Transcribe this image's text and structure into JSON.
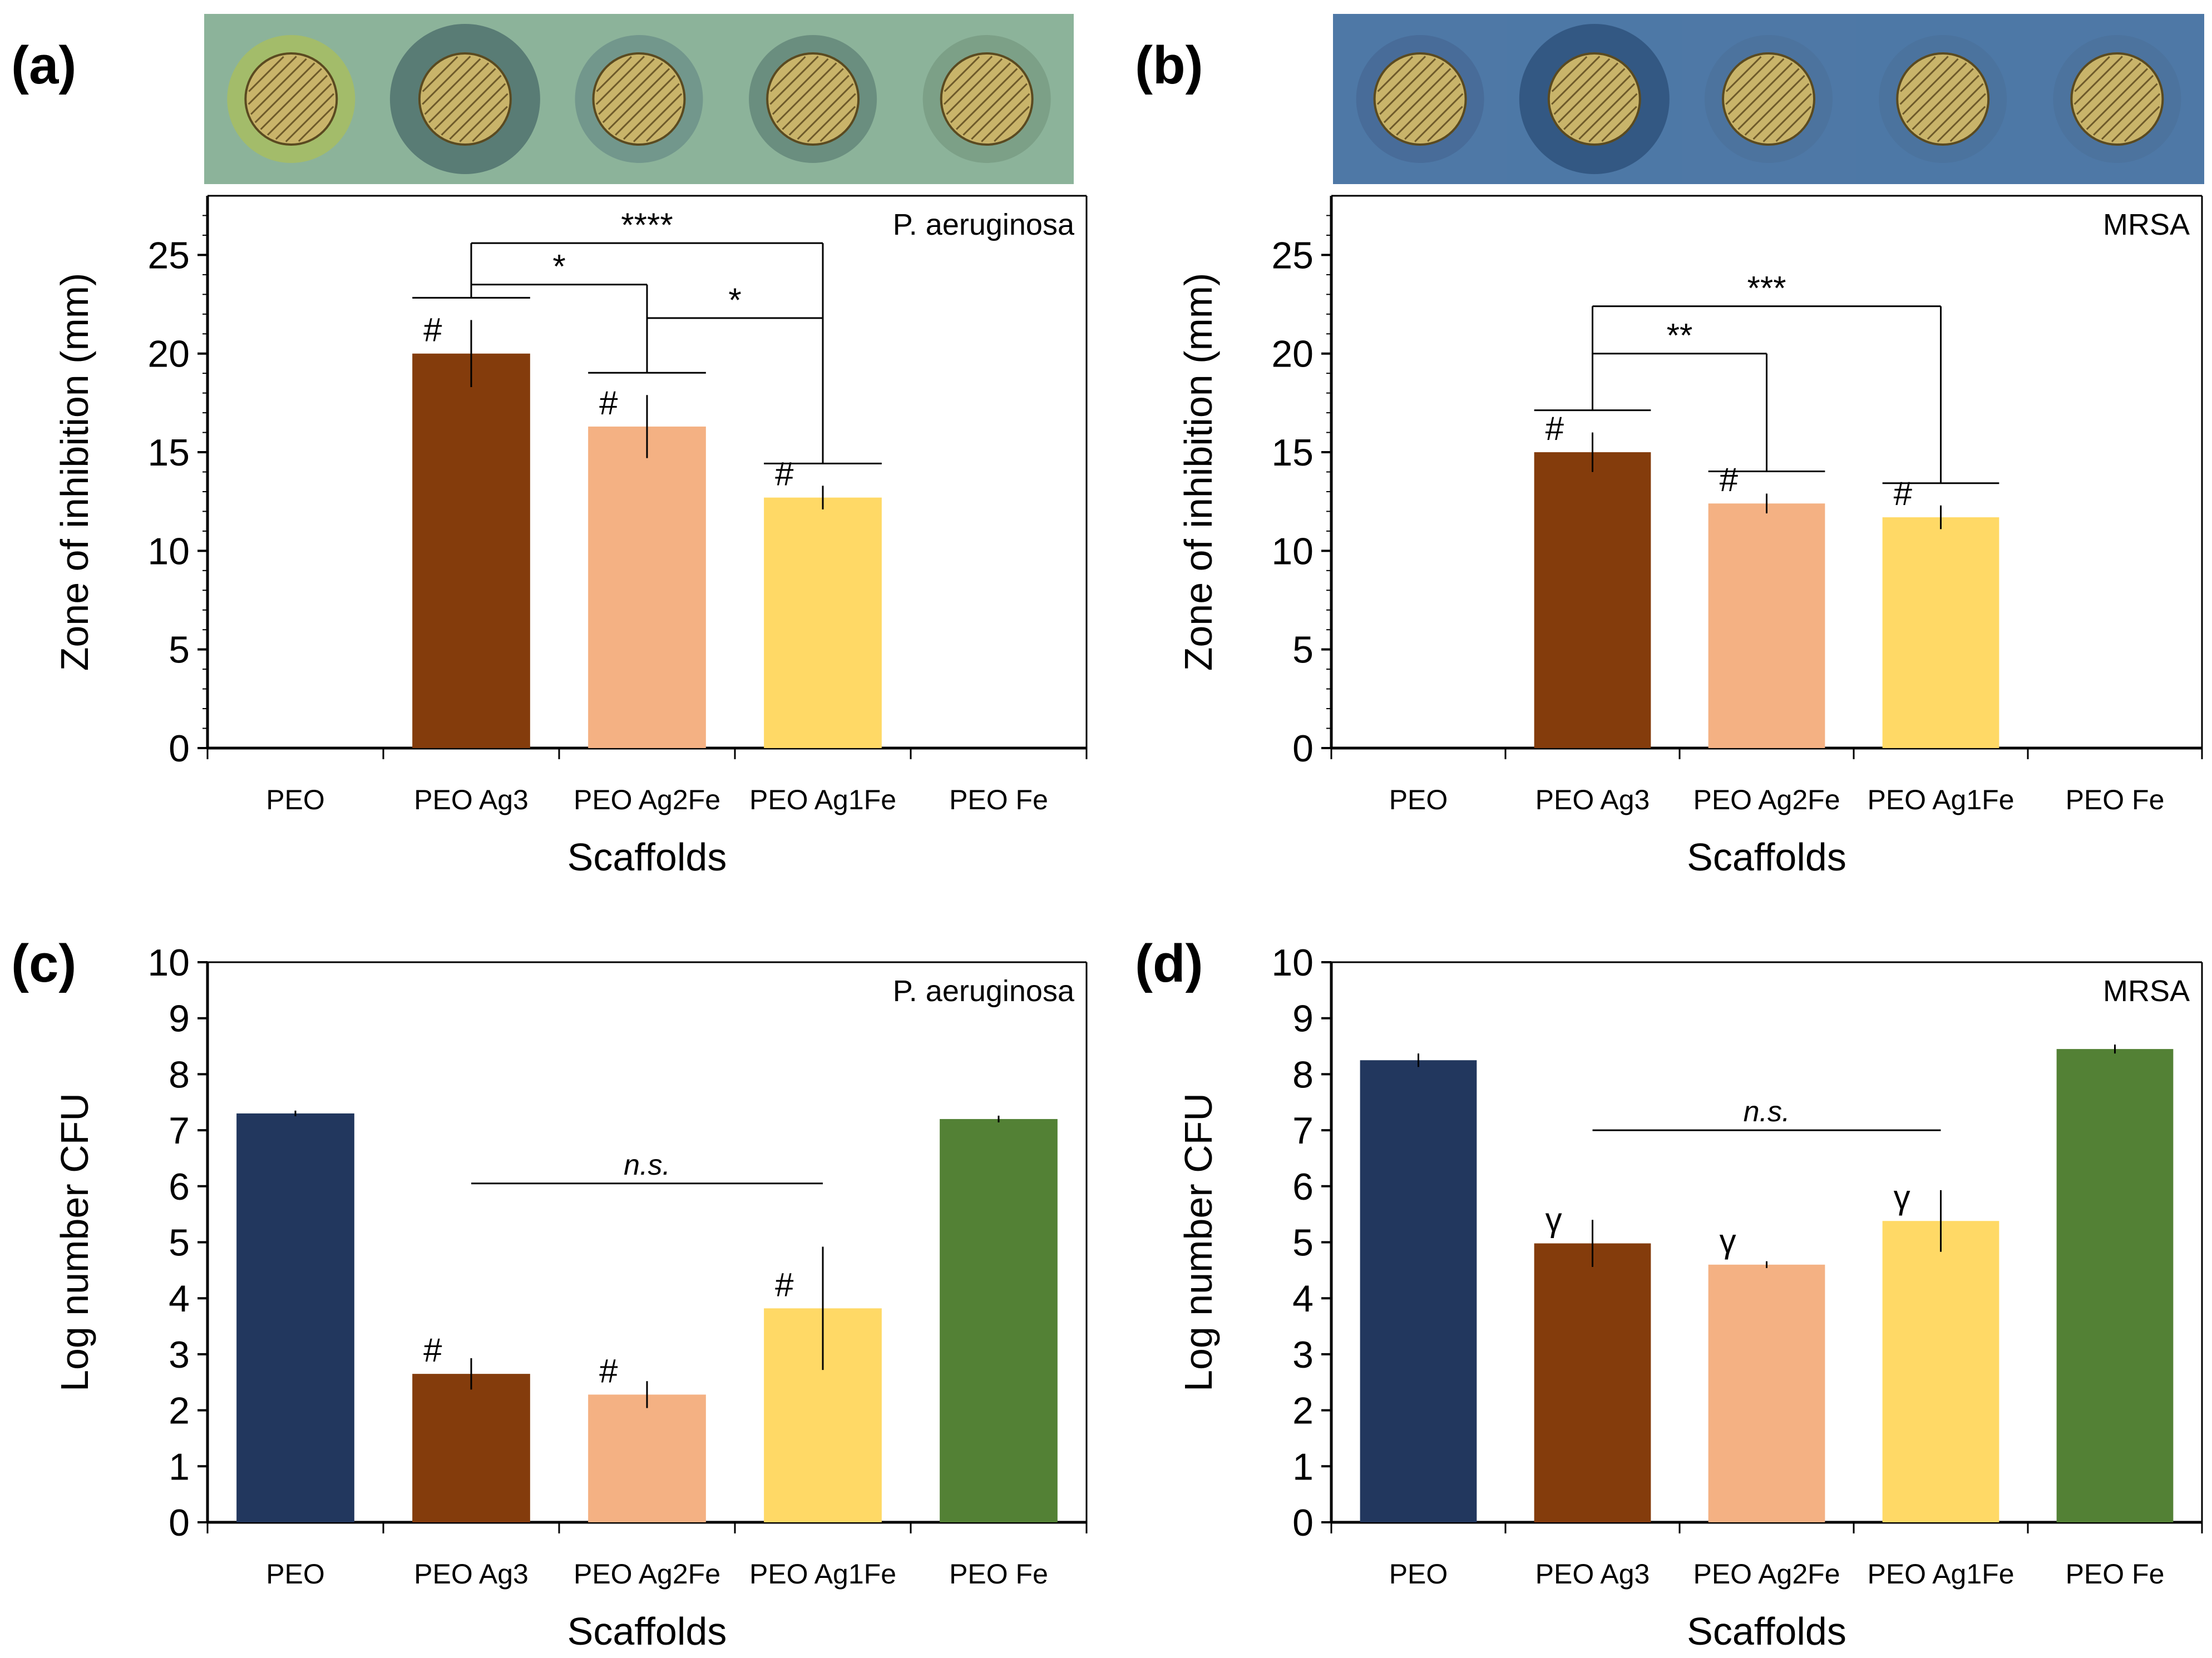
{
  "figure": {
    "panel_labels": [
      "(a)",
      "(b)",
      "(c)",
      "(d)"
    ],
    "colors": {
      "PEO": "#22375e",
      "PEO Ag3": "#843c0c",
      "PEO Ag2Fe": "#f4b183",
      "PEO Ag1Fe": "#ffd966",
      "PEO Fe": "#538135",
      "axis": "#000000"
    },
    "photo_strips": [
      {
        "panel": "(a)",
        "background": "#8cb39a",
        "disc_count": 5,
        "halo": [
          "#b6c244",
          "#2f4f58",
          "#5c7f82",
          "#4e6f6a",
          "#6f8f78"
        ]
      },
      {
        "panel": "(b)",
        "background": "#4e78a6",
        "disc_count": 5,
        "halo": [
          "#44628e",
          "#1f3e66",
          "#4a6f98",
          "#4a6f98",
          "#4a6f98"
        ]
      }
    ]
  },
  "chart_data": [
    {
      "panel": "(a)",
      "type": "bar",
      "title": "",
      "annotation": "P. aeruginosa",
      "xlabel": "Scaffolds",
      "ylabel": "Zone of inhibition (mm)",
      "categories": [
        "PEO",
        "PEO Ag3",
        "PEO Ag2Fe",
        "PEO Ag1Fe",
        "PEO Fe"
      ],
      "values": [
        0,
        20.0,
        16.3,
        12.7,
        0
      ],
      "errors": [
        0,
        1.7,
        1.6,
        0.6,
        0
      ],
      "bar_marks": [
        "",
        "#",
        "#",
        "#",
        ""
      ],
      "ylim": [
        0,
        28
      ],
      "yticks": [
        0,
        5,
        10,
        15,
        20,
        25
      ],
      "significance": [
        {
          "from": 1,
          "to": 2,
          "label": "*"
        },
        {
          "from": 1,
          "to": 3,
          "label": "****"
        },
        {
          "from": 2,
          "to": 3,
          "label": "*"
        }
      ]
    },
    {
      "panel": "(b)",
      "type": "bar",
      "title": "",
      "annotation": "MRSA",
      "xlabel": "Scaffolds",
      "ylabel": "Zone of inhibition (mm)",
      "categories": [
        "PEO",
        "PEO Ag3",
        "PEO Ag2Fe",
        "PEO Ag1Fe",
        "PEO Fe"
      ],
      "values": [
        0,
        15.0,
        12.4,
        11.7,
        0
      ],
      "errors": [
        0,
        1.0,
        0.5,
        0.6,
        0
      ],
      "bar_marks": [
        "",
        "#",
        "#",
        "#",
        ""
      ],
      "ylim": [
        0,
        28
      ],
      "yticks": [
        0,
        5,
        10,
        15,
        20,
        25
      ],
      "significance": [
        {
          "from": 1,
          "to": 2,
          "label": "**"
        },
        {
          "from": 1,
          "to": 3,
          "label": "***"
        }
      ]
    },
    {
      "panel": "(c)",
      "type": "bar",
      "title": "",
      "annotation": "P. aeruginosa",
      "xlabel": "Scaffolds",
      "ylabel": "Log number CFU",
      "categories": [
        "PEO",
        "PEO Ag3",
        "PEO Ag2Fe",
        "PEO Ag1Fe",
        "PEO Fe"
      ],
      "values": [
        7.3,
        2.65,
        2.28,
        3.82,
        7.2
      ],
      "errors": [
        0.05,
        0.28,
        0.24,
        1.1,
        0.06
      ],
      "bar_marks": [
        "",
        "#",
        "#",
        "#",
        ""
      ],
      "ylim": [
        0,
        10
      ],
      "yticks": [
        0,
        1,
        2,
        3,
        4,
        5,
        6,
        7,
        8,
        9,
        10
      ],
      "ns_bracket": {
        "from": 1,
        "to": 3,
        "y": 6.05,
        "label": "n.s."
      }
    },
    {
      "panel": "(d)",
      "type": "bar",
      "title": "",
      "annotation": "MRSA",
      "xlabel": "Scaffolds",
      "ylabel": "Log number CFU",
      "categories": [
        "PEO",
        "PEO Ag3",
        "PEO Ag2Fe",
        "PEO Ag1Fe",
        "PEO Fe"
      ],
      "values": [
        8.25,
        4.98,
        4.6,
        5.38,
        8.45
      ],
      "errors": [
        0.12,
        0.42,
        0.06,
        0.55,
        0.08
      ],
      "bar_marks": [
        "",
        "γ",
        "γ",
        "γ",
        ""
      ],
      "ylim": [
        0,
        10
      ],
      "yticks": [
        0,
        1,
        2,
        3,
        4,
        5,
        6,
        7,
        8,
        9,
        10
      ],
      "ns_bracket": {
        "from": 1,
        "to": 3,
        "y": 7.0,
        "label": "n.s."
      }
    }
  ]
}
